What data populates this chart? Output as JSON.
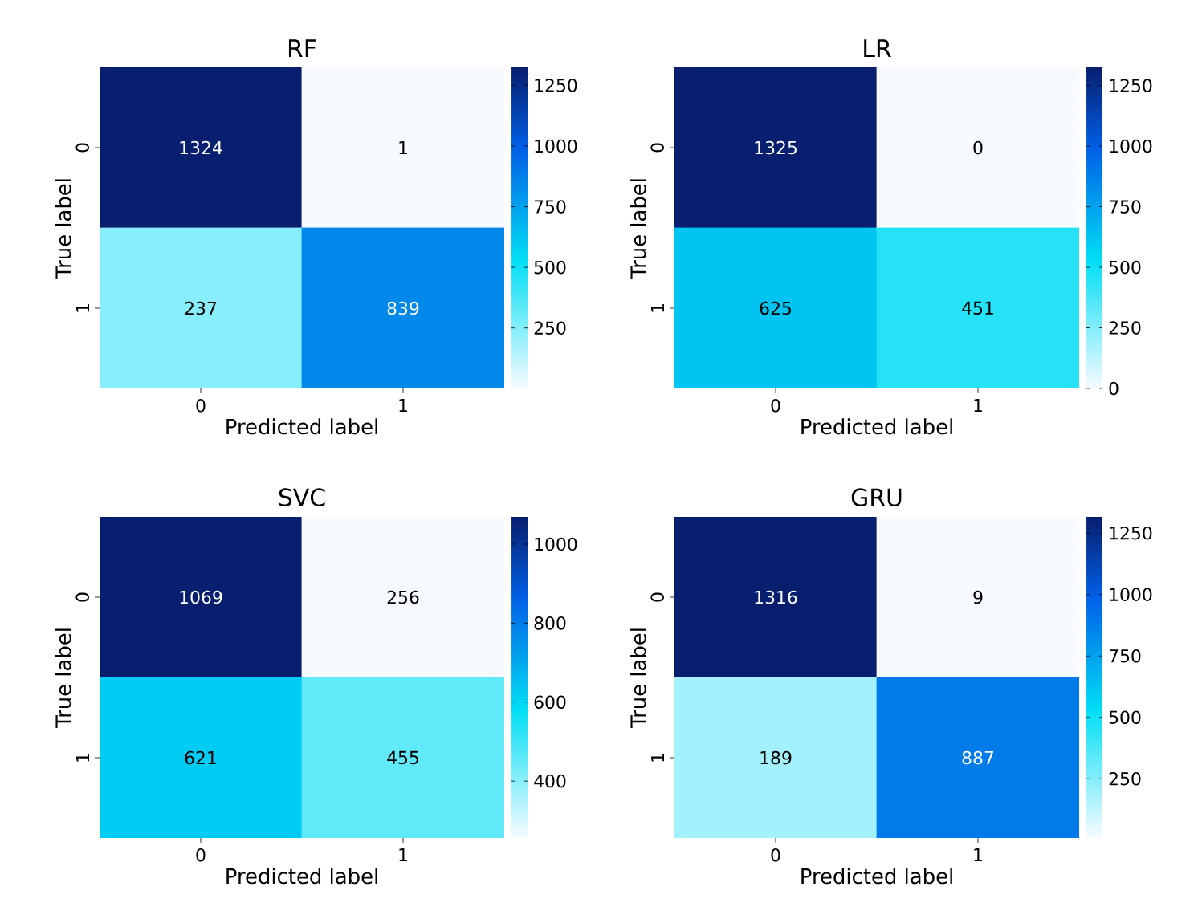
{
  "chart_data": [
    {
      "type": "heatmap",
      "title": "RF",
      "xlabel": "Predicted label",
      "ylabel": "True label",
      "categories": [
        "0",
        "1"
      ],
      "y_categories": [
        "0",
        "1"
      ],
      "cells": [
        [
          1324,
          1
        ],
        [
          237,
          839
        ]
      ],
      "clim": [
        1,
        1324
      ],
      "cticks": [
        250,
        500,
        750,
        1000,
        1250
      ],
      "data_labels": true
    },
    {
      "type": "heatmap",
      "title": "LR",
      "xlabel": "Predicted label",
      "ylabel": "True label",
      "categories": [
        "0",
        "1"
      ],
      "y_categories": [
        "0",
        "1"
      ],
      "cells": [
        [
          1325,
          0
        ],
        [
          625,
          451
        ]
      ],
      "clim": [
        0,
        1325
      ],
      "cticks": [
        0,
        250,
        500,
        750,
        1000,
        1250
      ],
      "data_labels": true
    },
    {
      "type": "heatmap",
      "title": "SVC",
      "xlabel": "Predicted label",
      "ylabel": "True label",
      "categories": [
        "0",
        "1"
      ],
      "y_categories": [
        "0",
        "1"
      ],
      "cells": [
        [
          1069,
          256
        ],
        [
          621,
          455
        ]
      ],
      "clim": [
        256,
        1069
      ],
      "cticks": [
        400,
        600,
        800,
        1000
      ],
      "data_labels": true
    },
    {
      "type": "heatmap",
      "title": "GRU",
      "xlabel": "Predicted label",
      "ylabel": "True label",
      "categories": [
        "0",
        "1"
      ],
      "y_categories": [
        "0",
        "1"
      ],
      "cells": [
        [
          1316,
          9
        ],
        [
          189,
          887
        ]
      ],
      "clim": [
        9,
        1316
      ],
      "cticks": [
        250,
        500,
        750,
        1000,
        1250
      ],
      "data_labels": true
    }
  ]
}
